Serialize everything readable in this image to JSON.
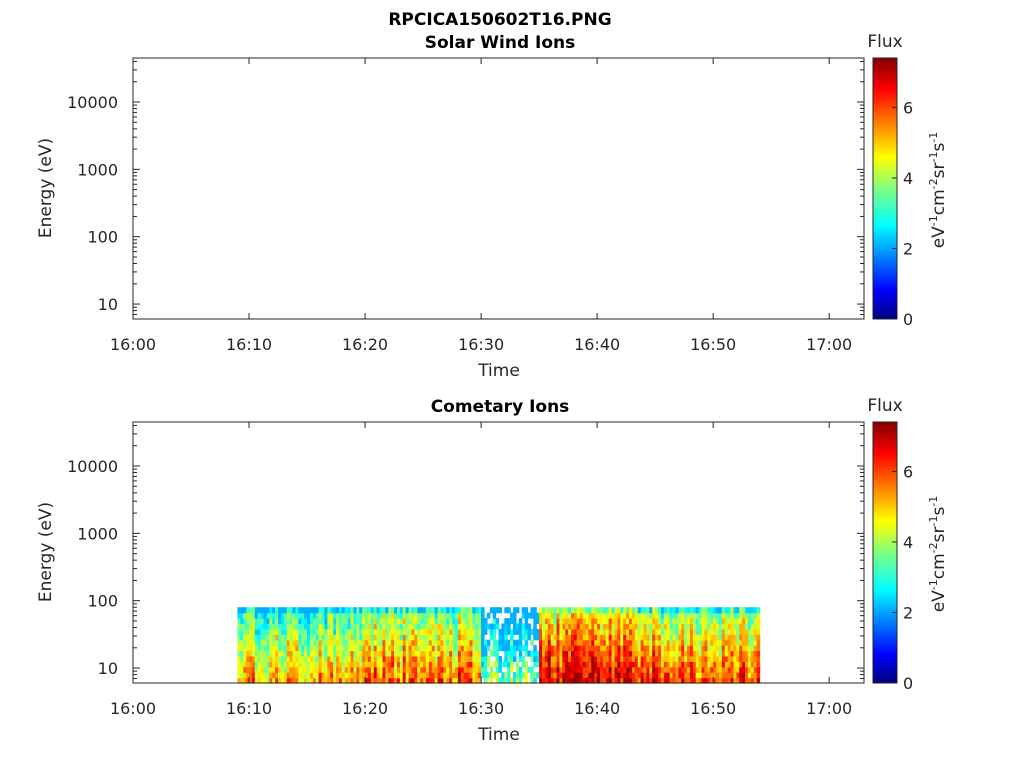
{
  "figure": {
    "title": "RPCICA150602T16.PNG"
  },
  "chart_data": [
    {
      "type": "heatmap",
      "title": "Solar Wind Ions",
      "xlabel": "Time",
      "ylabel": "Energy (eV)",
      "x_ticks": [
        "16:00",
        "16:10",
        "16:20",
        "16:30",
        "16:40",
        "16:50",
        "17:00"
      ],
      "x_range_minutes": [
        0,
        63
      ],
      "y_scale": "log",
      "y_ticks": [
        "10",
        "100",
        "1000",
        "10000"
      ],
      "y_range": [
        6,
        45000
      ],
      "colorbar": {
        "label": "Flux",
        "unit": "eV-1cm-2sr-1s-1",
        "ticks": [
          "0",
          "2",
          "4",
          "6"
        ],
        "range": [
          0,
          7.4
        ],
        "colormap": "jet"
      },
      "data": []
    },
    {
      "type": "heatmap",
      "title": "Cometary Ions",
      "xlabel": "Time",
      "ylabel": "Energy (eV)",
      "x_ticks": [
        "16:00",
        "16:10",
        "16:20",
        "16:30",
        "16:40",
        "16:50",
        "17:00"
      ],
      "x_range_minutes": [
        0,
        63
      ],
      "y_scale": "log",
      "y_ticks": [
        "10",
        "100",
        "1000",
        "10000"
      ],
      "y_range": [
        6,
        45000
      ],
      "colorbar": {
        "label": "Flux",
        "unit": "eV-1cm-2sr-1s-1",
        "ticks": [
          "0",
          "2",
          "4",
          "6"
        ],
        "range": [
          0,
          7.4
        ],
        "colormap": "jet"
      },
      "data_extent": {
        "time_start_min": 9,
        "time_end_min": 54,
        "energy_min": 6,
        "energy_max": 80
      },
      "flux_segments": [
        {
          "t_start": 9,
          "t_end": 20,
          "level": 5.2
        },
        {
          "t_start": 20,
          "t_end": 30,
          "level": 5.8
        },
        {
          "t_start": 30,
          "t_end": 35,
          "level": 3.8
        },
        {
          "t_start": 35,
          "t_end": 45,
          "level": 6.6
        },
        {
          "t_start": 45,
          "t_end": 54,
          "level": 6.0
        }
      ]
    }
  ]
}
